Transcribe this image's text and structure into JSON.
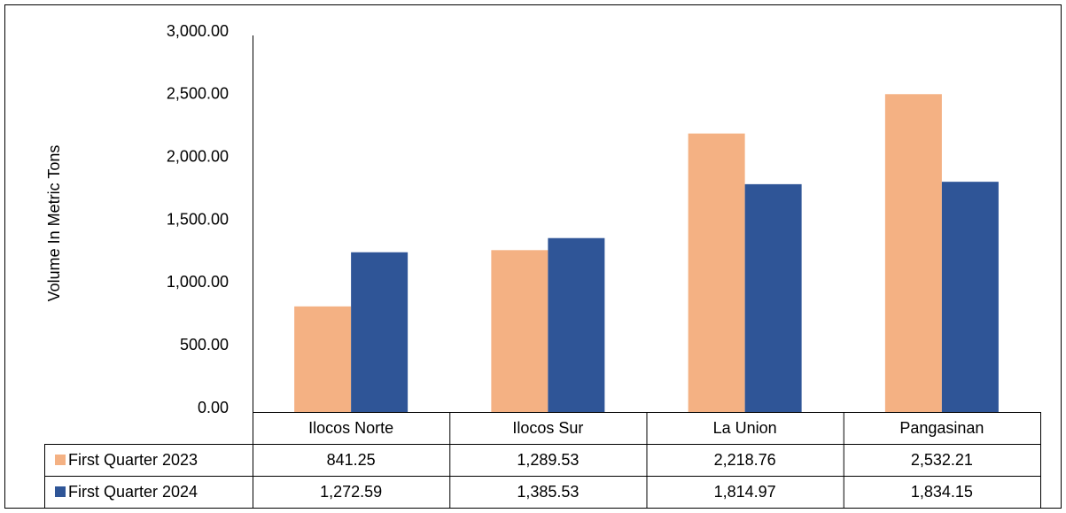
{
  "chart_data": {
    "type": "bar",
    "y_label": "Volume In Metric Tons",
    "categories": [
      "Ilocos Norte",
      "Ilocos Sur",
      "La Union",
      "Pangasinan"
    ],
    "series": [
      {
        "name": "First Quarter 2023",
        "color": "#f4b183",
        "values": [
          841.25,
          1289.53,
          2218.76,
          2532.21
        ],
        "value_labels": [
          "841.25",
          "1,289.53",
          "2,218.76",
          "2,532.21"
        ]
      },
      {
        "name": "First Quarter 2024",
        "color": "#2f5597",
        "values": [
          1272.59,
          1385.53,
          1814.97,
          1834.15
        ],
        "value_labels": [
          "1,272.59",
          "1,385.53",
          "1,814.97",
          "1,834.15"
        ]
      }
    ],
    "ylim": [
      0,
      3000
    ],
    "yticks": [
      {
        "value": 0,
        "label": "0.00"
      },
      {
        "value": 500,
        "label": "500.00"
      },
      {
        "value": 1000,
        "label": "1,000.00"
      },
      {
        "value": 1500,
        "label": "1,500.00"
      },
      {
        "value": 2000,
        "label": "2,000.00"
      },
      {
        "value": 2500,
        "label": "2,500.00"
      },
      {
        "value": 3000,
        "label": "3,000.00"
      }
    ],
    "grid": false,
    "data_table": true
  }
}
